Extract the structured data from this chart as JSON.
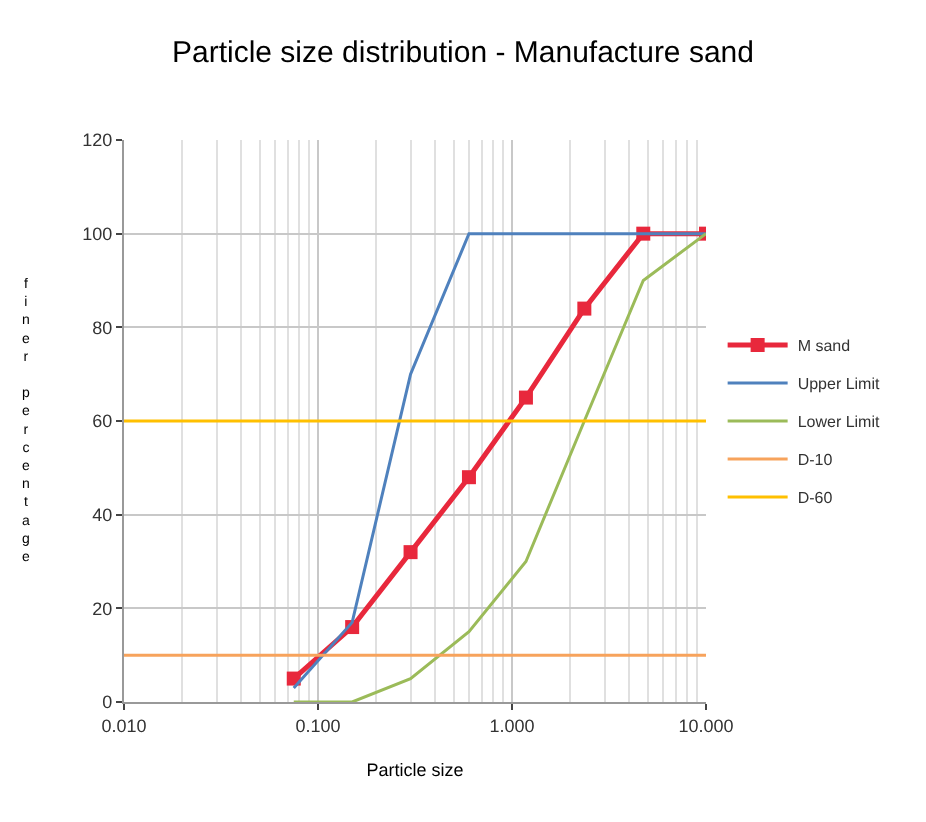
{
  "chart_data": {
    "type": "line",
    "title": "Particle size distribution - Manufacture sand",
    "xlabel": "Particle size",
    "ylabel": "finer percentage",
    "log": "x",
    "xlim": [
      0.01,
      10
    ],
    "xticks": [
      {
        "value": 0.01,
        "label": "0.010"
      },
      {
        "value": 0.1,
        "label": "0.100"
      },
      {
        "value": 1,
        "label": "1.000"
      },
      {
        "value": 10,
        "label": "10.000"
      }
    ],
    "ylim": [
      0,
      120
    ],
    "yticks": [
      0,
      20,
      40,
      60,
      80,
      100,
      120
    ],
    "grid": true,
    "legend": "right",
    "x": [
      0.075,
      0.15,
      0.3,
      0.6,
      1.18,
      2.36,
      4.75,
      10
    ],
    "series": [
      {
        "name": "M sand",
        "color": "#e8283c",
        "marker": "square",
        "values": [
          5,
          16,
          32,
          48,
          65,
          84,
          100,
          100
        ]
      },
      {
        "name": "Upper Limit",
        "color": "#4f81bd",
        "marker": "none",
        "values": [
          3,
          17,
          70,
          100,
          100,
          100,
          100,
          100
        ]
      },
      {
        "name": "Lower Limit",
        "color": "#9bbb59",
        "marker": "none",
        "values": [
          0,
          0,
          5,
          15,
          30,
          60,
          90,
          100
        ]
      }
    ],
    "ref_lines": [
      {
        "axis": "y",
        "value": 10,
        "label": "D-10",
        "color": "#f7a35c"
      },
      {
        "axis": "y",
        "value": 60,
        "label": "D-60",
        "color": "#ffc000"
      }
    ]
  }
}
